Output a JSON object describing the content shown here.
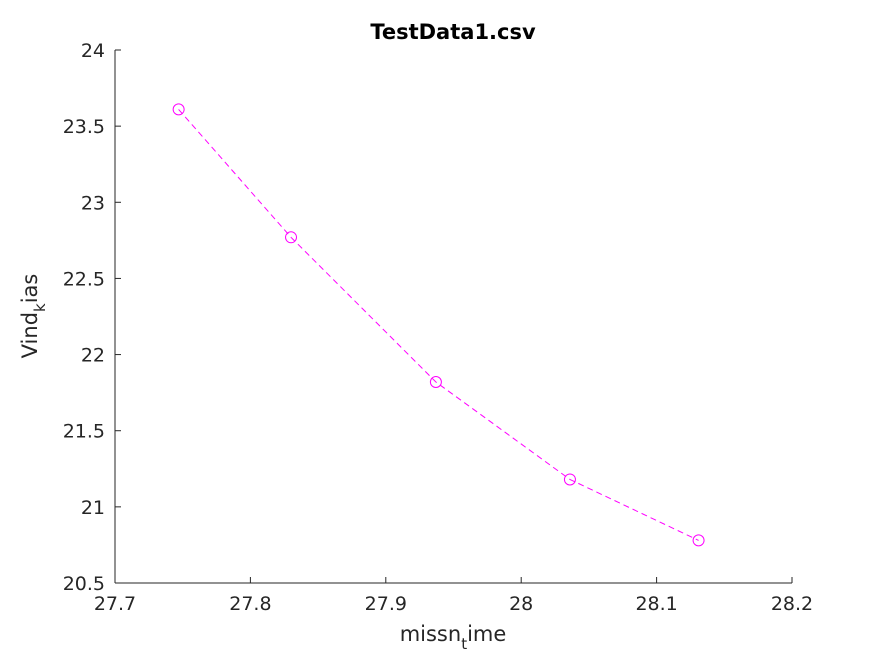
{
  "chart_data": {
    "type": "line",
    "title": "TestData1.csv",
    "xlabel": {
      "main": "missn",
      "sub": "t",
      "rest": "ime"
    },
    "ylabel": {
      "main": "Vind",
      "sub": "k",
      "rest": "ias"
    },
    "xlim": [
      27.7,
      28.2
    ],
    "ylim": [
      20.5,
      24
    ],
    "xticks": [
      27.7,
      27.8,
      27.9,
      28,
      28.1,
      28.2
    ],
    "xtick_labels": [
      "27.7",
      "27.8",
      "27.9",
      "28",
      "28.1",
      "28.2"
    ],
    "yticks": [
      20.5,
      21,
      21.5,
      22,
      22.5,
      23,
      23.5,
      24
    ],
    "ytick_labels": [
      "20.5",
      "21",
      "21.5",
      "22",
      "22.5",
      "23",
      "23.5",
      "24"
    ],
    "grid": false,
    "series": [
      {
        "color": "#ff00ff",
        "line_style": "dashed",
        "marker": "circle",
        "x": [
          27.747,
          27.83,
          27.937,
          28.036,
          28.131
        ],
        "y": [
          23.61,
          22.77,
          21.82,
          21.18,
          20.78
        ]
      }
    ]
  }
}
